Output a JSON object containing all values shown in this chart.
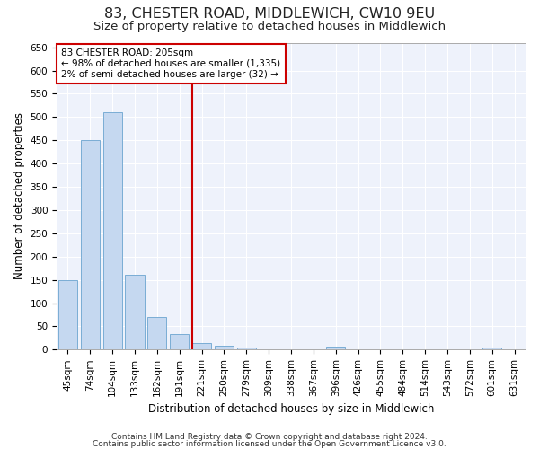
{
  "title": "83, CHESTER ROAD, MIDDLEWICH, CW10 9EU",
  "subtitle": "Size of property relative to detached houses in Middlewich",
  "xlabel": "Distribution of detached houses by size in Middlewich",
  "ylabel": "Number of detached properties",
  "categories": [
    "45sqm",
    "74sqm",
    "104sqm",
    "133sqm",
    "162sqm",
    "191sqm",
    "221sqm",
    "250sqm",
    "279sqm",
    "309sqm",
    "338sqm",
    "367sqm",
    "396sqm",
    "426sqm",
    "455sqm",
    "484sqm",
    "514sqm",
    "543sqm",
    "572sqm",
    "601sqm",
    "631sqm"
  ],
  "values": [
    150,
    450,
    510,
    160,
    70,
    33,
    14,
    9,
    5,
    0,
    0,
    0,
    6,
    0,
    0,
    0,
    0,
    0,
    0,
    5,
    0
  ],
  "bar_color": "#c5d8f0",
  "bar_edge_color": "#7aadd4",
  "highlight_line_color": "#cc0000",
  "annotation_line1": "83 CHESTER ROAD: 205sqm",
  "annotation_line2": "← 98% of detached houses are smaller (1,335)",
  "annotation_line3": "2% of semi-detached houses are larger (32) →",
  "annotation_box_edge_color": "#cc0000",
  "ylim": [
    0,
    660
  ],
  "yticks": [
    0,
    50,
    100,
    150,
    200,
    250,
    300,
    350,
    400,
    450,
    500,
    550,
    600,
    650
  ],
  "footer_line1": "Contains HM Land Registry data © Crown copyright and database right 2024.",
  "footer_line2": "Contains public sector information licensed under the Open Government Licence v3.0.",
  "background_color": "#eef2fb",
  "grid_color": "#ffffff",
  "title_fontsize": 11.5,
  "subtitle_fontsize": 9.5,
  "ylabel_fontsize": 8.5,
  "xlabel_fontsize": 8.5,
  "tick_fontsize": 7.5,
  "annotation_fontsize": 7.5,
  "footer_fontsize": 6.5
}
